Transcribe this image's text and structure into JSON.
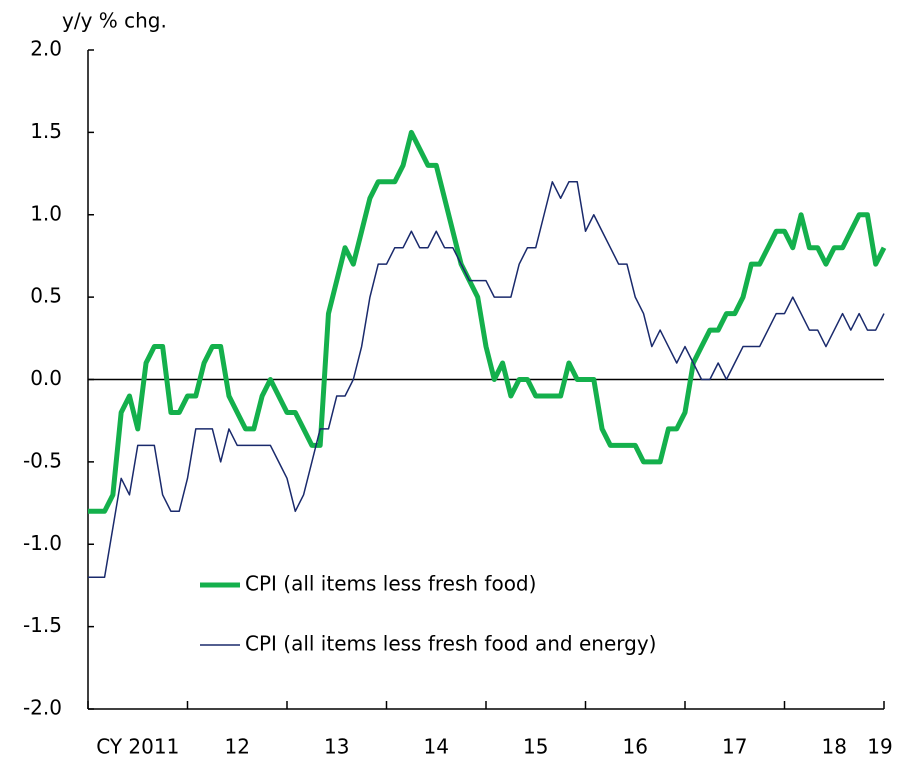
{
  "chart_data": {
    "type": "line",
    "y_axis_label": "y/y % chg.",
    "categories": [
      "CY 2011",
      null,
      null,
      null,
      null,
      null,
      null,
      null,
      null,
      null,
      null,
      null,
      "12",
      null,
      null,
      null,
      null,
      null,
      null,
      null,
      null,
      null,
      null,
      null,
      "13",
      null,
      null,
      null,
      null,
      null,
      null,
      null,
      null,
      null,
      null,
      null,
      "14",
      null,
      null,
      null,
      null,
      null,
      null,
      null,
      null,
      null,
      null,
      null,
      "15",
      null,
      null,
      null,
      null,
      null,
      null,
      null,
      null,
      null,
      null,
      null,
      "16",
      null,
      null,
      null,
      null,
      null,
      null,
      null,
      null,
      null,
      null,
      null,
      "17",
      null,
      null,
      null,
      null,
      null,
      null,
      null,
      null,
      null,
      null,
      null,
      "18",
      null,
      null,
      null,
      null,
      null,
      null,
      null,
      null,
      null,
      null,
      null,
      "19"
    ],
    "series": [
      {
        "name": "CPI (all items less fresh food)",
        "color": "#14b04c",
        "width": 5,
        "values": [
          -0.8,
          -0.8,
          -0.8,
          -0.7,
          -0.2,
          -0.1,
          -0.3,
          0.1,
          0.2,
          0.2,
          -0.2,
          -0.2,
          -0.1,
          -0.1,
          0.1,
          0.2,
          0.2,
          -0.1,
          -0.2,
          -0.3,
          -0.3,
          -0.1,
          0.0,
          -0.1,
          -0.2,
          -0.2,
          -0.3,
          -0.4,
          -0.4,
          0.4,
          0.6,
          0.8,
          0.7,
          0.9,
          1.1,
          1.2,
          1.2,
          1.2,
          1.3,
          1.5,
          1.4,
          1.3,
          1.3,
          1.1,
          0.9,
          0.7,
          0.6,
          0.5,
          0.2,
          0.0,
          0.1,
          -0.1,
          0.0,
          0.0,
          -0.1,
          -0.1,
          -0.1,
          -0.1,
          0.1,
          0.0,
          0.0,
          0.0,
          -0.3,
          -0.4,
          -0.4,
          -0.4,
          -0.4,
          -0.5,
          -0.5,
          -0.5,
          -0.3,
          -0.3,
          -0.2,
          0.1,
          0.2,
          0.3,
          0.3,
          0.4,
          0.4,
          0.5,
          0.7,
          0.7,
          0.8,
          0.9,
          0.9,
          0.8,
          1.0,
          0.8,
          0.8,
          0.7,
          0.8,
          0.8,
          0.9,
          1.0,
          1.0,
          0.7,
          0.8
        ]
      },
      {
        "name": "CPI (all items less fresh food and energy)",
        "color": "#1a2a6c",
        "width": 1.5,
        "values": [
          -1.2,
          -1.2,
          -1.2,
          -0.9,
          -0.6,
          -0.7,
          -0.4,
          -0.4,
          -0.4,
          -0.7,
          -0.8,
          -0.8,
          -0.6,
          -0.3,
          -0.3,
          -0.3,
          -0.5,
          -0.3,
          -0.4,
          -0.4,
          -0.4,
          -0.4,
          -0.4,
          -0.5,
          -0.6,
          -0.8,
          -0.7,
          -0.5,
          -0.3,
          -0.3,
          -0.1,
          -0.1,
          0.0,
          0.2,
          0.5,
          0.7,
          0.7,
          0.8,
          0.8,
          0.9,
          0.8,
          0.8,
          0.9,
          0.8,
          0.8,
          0.7,
          0.6,
          0.6,
          0.6,
          0.5,
          0.5,
          0.5,
          0.7,
          0.8,
          0.8,
          1.0,
          1.2,
          1.1,
          1.2,
          1.2,
          0.9,
          1.0,
          0.9,
          0.8,
          0.7,
          0.7,
          0.5,
          0.4,
          0.2,
          0.3,
          0.2,
          0.1,
          0.2,
          0.1,
          0.0,
          0.0,
          0.1,
          0.0,
          0.1,
          0.2,
          0.2,
          0.2,
          0.3,
          0.4,
          0.4,
          0.5,
          0.4,
          0.3,
          0.3,
          0.2,
          0.3,
          0.4,
          0.3,
          0.4,
          0.3,
          0.3,
          0.4
        ]
      }
    ],
    "ylim": [
      -2.0,
      2.0
    ],
    "yticks": [
      {
        "value": -2.0,
        "label": "-2.0"
      },
      {
        "value": -1.5,
        "label": "-1.5"
      },
      {
        "value": -1.0,
        "label": "-1.0"
      },
      {
        "value": -0.5,
        "label": "-0.5"
      },
      {
        "value": 0.0,
        "label": "0.0"
      },
      {
        "value": 0.5,
        "label": "0.5"
      },
      {
        "value": 1.0,
        "label": "1.0"
      },
      {
        "value": 1.5,
        "label": "1.5"
      },
      {
        "value": 2.0,
        "label": "2.0"
      }
    ],
    "zero_line": true
  }
}
